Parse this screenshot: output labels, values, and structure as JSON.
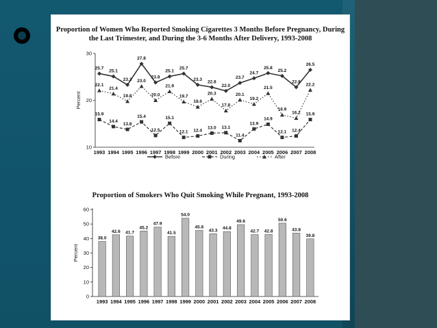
{
  "slide": {
    "background": "#12586f",
    "accent_dark": "#2f4d55"
  },
  "chart_data": [
    {
      "type": "line",
      "title": "Proportion of Women Who Reported Smoking Cigarettes 3 Months Before Pregnancy, During the Last Trimester, and During the 3-6 Months After Delivery, 1993-2008",
      "xlabel": "",
      "ylabel": "Percent",
      "ylim": [
        10,
        30
      ],
      "yticks": [
        10,
        20,
        30
      ],
      "categories": [
        "1993",
        "1994",
        "1995",
        "1996",
        "1997",
        "1998",
        "1999",
        "2000",
        "2001",
        "2002",
        "2003",
        "2004",
        "2005",
        "2006",
        "2007",
        "2008"
      ],
      "series": [
        {
          "name": "Before",
          "style": "solid",
          "marker": "diamond",
          "values": [
            25.7,
            25.1,
            23.3,
            27.8,
            23.8,
            25.1,
            25.7,
            23.3,
            22.8,
            22.0,
            23.7,
            24.7,
            25.8,
            25.2,
            22.8,
            26.5
          ]
        },
        {
          "name": "During",
          "style": "dashed",
          "marker": "square",
          "values": [
            15.9,
            14.4,
            13.8,
            15.4,
            12.5,
            15.1,
            12.1,
            12.4,
            13.0,
            13.1,
            11.4,
            13.9,
            14.9,
            12.1,
            12.4,
            15.9
          ]
        },
        {
          "name": "After",
          "style": "dotted",
          "marker": "triangle",
          "values": [
            22.1,
            21.4,
            19.8,
            23.0,
            20.0,
            21.9,
            19.7,
            18.6,
            20.3,
            17.8,
            20.1,
            19.2,
            21.5,
            16.9,
            16.2,
            22.2
          ]
        }
      ],
      "legend": [
        "Before",
        "During",
        "After"
      ]
    },
    {
      "type": "bar",
      "title": "Proportion of Smokers Who Quit Smoking While Pregnant, 1993-2008",
      "xlabel": "",
      "ylabel": "Percent",
      "ylim": [
        0,
        60
      ],
      "yticks": [
        0,
        10,
        20,
        30,
        40,
        50,
        60
      ],
      "categories": [
        "1993",
        "1994",
        "1995",
        "1996",
        "1997",
        "1998",
        "1999",
        "2000",
        "2001",
        "2002",
        "2003",
        "2004",
        "2005",
        "2006",
        "2007",
        "2008"
      ],
      "values": [
        38.0,
        42.6,
        41.7,
        45.2,
        47.9,
        41.5,
        54.0,
        45.6,
        43.3,
        44.8,
        49.6,
        42.7,
        42.8,
        50.6,
        43.8,
        39.8
      ],
      "bar_color": "#b8b8b8"
    }
  ]
}
